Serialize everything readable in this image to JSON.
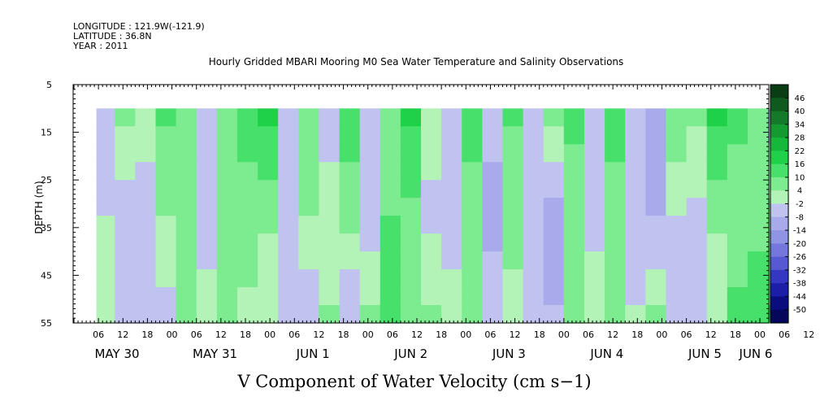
{
  "header": {
    "longitude": "LONGITUDE : 121.9W(-121.9)",
    "latitude": "LATITUDE : 36.8N",
    "year": "YEAR : 2011"
  },
  "chart_data": {
    "type": "heatmap",
    "title": "Hourly Gridded MBARI Mooring M0 Sea Water Temperature and Salinity Observations",
    "xlabel": "V Component of Water Velocity (cm s−1)",
    "ylabel": "DEPTH (m)",
    "y_ticks": [
      "5",
      "15",
      "25",
      "35",
      "45",
      "55"
    ],
    "y_range": [
      5,
      55
    ],
    "data_depth_range": [
      10,
      55
    ],
    "x_hour_ticks": [
      "06",
      "12",
      "18",
      "00",
      "06",
      "12",
      "18",
      "00",
      "06",
      "12",
      "18",
      "00",
      "06",
      "12",
      "18",
      "00",
      "06",
      "12",
      "18",
      "00",
      "06",
      "12",
      "18",
      "00",
      "06",
      "12",
      "18",
      "00",
      "06",
      "12",
      "18",
      "00"
    ],
    "x_day_labels": [
      "MAY 30",
      "MAY 31",
      "JUN  1",
      "JUN  2",
      "JUN  3",
      "JUN  4",
      "JUN  5",
      "JUN  6"
    ],
    "colorbar_labels": [
      "46",
      "40",
      "34",
      "28",
      "22",
      "16",
      "10",
      "4",
      "-2",
      "-8",
      "-14",
      "-20",
      "-26",
      "-32",
      "-38",
      "-44",
      "-50"
    ],
    "colorbar_colors": [
      "#0b3d14",
      "#0f5a1e",
      "#127a28",
      "#139a31",
      "#15b83a",
      "#1fd148",
      "#46e06a",
      "#7deb8f",
      "#b3f3b8",
      "#c0c2ef",
      "#a8aaeb",
      "#9193e5",
      "#7577dd",
      "#5659d2",
      "#3537c2",
      "#1c1ea8",
      "#0b0d7e",
      "#06075a"
    ],
    "columns": [
      {
        "start": "MAY 30 05:30",
        "v_surface": -4,
        "v_mid": -2,
        "v_deep": 2
      },
      {
        "start": "MAY 30 10:00",
        "v_surface": 6,
        "v_mid": -6,
        "v_deep": -8
      },
      {
        "start": "MAY 30 15:00",
        "v_surface": 2,
        "v_mid": -8,
        "v_deep": -6
      },
      {
        "start": "MAY 30 20:00",
        "v_surface": 10,
        "v_mid": 4,
        "v_deep": -4
      },
      {
        "start": "MAY 31 01:00",
        "v_surface": 8,
        "v_mid": 8,
        "v_deep": 4
      },
      {
        "start": "MAY 31 06:00",
        "v_surface": -6,
        "v_mid": -8,
        "v_deep": 2
      },
      {
        "start": "MAY 31 11:00",
        "v_surface": 8,
        "v_mid": 10,
        "v_deep": 6
      },
      {
        "start": "MAY 31 16:00",
        "v_surface": 12,
        "v_mid": 8,
        "v_deep": 2
      },
      {
        "start": "MAY 31 21:00",
        "v_surface": 16,
        "v_mid": 6,
        "v_deep": -2
      },
      {
        "start": "JUN 1 02:00",
        "v_surface": -4,
        "v_mid": -6,
        "v_deep": -4
      },
      {
        "start": "JUN 1 07:00",
        "v_surface": 6,
        "v_mid": 4,
        "v_deep": -6
      },
      {
        "start": "JUN 1 12:00",
        "v_surface": -6,
        "v_mid": 2,
        "v_deep": 4
      },
      {
        "start": "JUN 1 17:00",
        "v_surface": 14,
        "v_mid": 6,
        "v_deep": -8
      },
      {
        "start": "JUN 1 22:00",
        "v_surface": -4,
        "v_mid": -6,
        "v_deep": 6
      },
      {
        "start": "JUN 2 03:00",
        "v_surface": 8,
        "v_mid": 10,
        "v_deep": 12
      },
      {
        "start": "JUN 2 08:00",
        "v_surface": 16,
        "v_mid": 8,
        "v_deep": 6
      },
      {
        "start": "JUN 2 13:00",
        "v_surface": 2,
        "v_mid": -4,
        "v_deep": 4
      },
      {
        "start": "JUN 2 18:00",
        "v_surface": -8,
        "v_mid": -6,
        "v_deep": 2
      },
      {
        "start": "JUN 2 23:00",
        "v_surface": 14,
        "v_mid": 4,
        "v_deep": 8
      },
      {
        "start": "JUN 3 04:00",
        "v_surface": -6,
        "v_mid": -10,
        "v_deep": -4
      },
      {
        "start": "JUN 3 09:00",
        "v_surface": 10,
        "v_mid": 6,
        "v_deep": 2
      },
      {
        "start": "JUN 3 14:00",
        "v_surface": -4,
        "v_mid": -8,
        "v_deep": -6
      },
      {
        "start": "JUN 3 19:00",
        "v_surface": 4,
        "v_mid": -12,
        "v_deep": -8
      },
      {
        "start": "JUN 4 00:00",
        "v_surface": 12,
        "v_mid": 4,
        "v_deep": 6
      },
      {
        "start": "JUN 4 05:00",
        "v_surface": -6,
        "v_mid": -4,
        "v_deep": 2
      },
      {
        "start": "JUN 4 10:00",
        "v_surface": 14,
        "v_mid": 6,
        "v_deep": 4
      },
      {
        "start": "JUN 4 15:00",
        "v_surface": -6,
        "v_mid": -4,
        "v_deep": -2
      },
      {
        "start": "JUN 4 20:00",
        "v_surface": -14,
        "v_mid": -8,
        "v_deep": 4
      },
      {
        "start": "JUN 5 01:00",
        "v_surface": 8,
        "v_mid": -2,
        "v_deep": -6
      },
      {
        "start": "JUN 5 06:00",
        "v_surface": 4,
        "v_mid": -4,
        "v_deep": -4
      },
      {
        "start": "JUN 5 11:00",
        "v_surface": 18,
        "v_mid": 6,
        "v_deep": -2
      },
      {
        "start": "JUN 5 16:00",
        "v_surface": 12,
        "v_mid": 4,
        "v_deep": 12
      },
      {
        "start": "JUN 5 21:00",
        "v_surface": 6,
        "v_mid": 8,
        "v_deep": 14
      },
      {
        "start": "JUN 6 02:00",
        "v_surface": -4,
        "v_mid": 6,
        "v_deep": 10
      }
    ]
  }
}
